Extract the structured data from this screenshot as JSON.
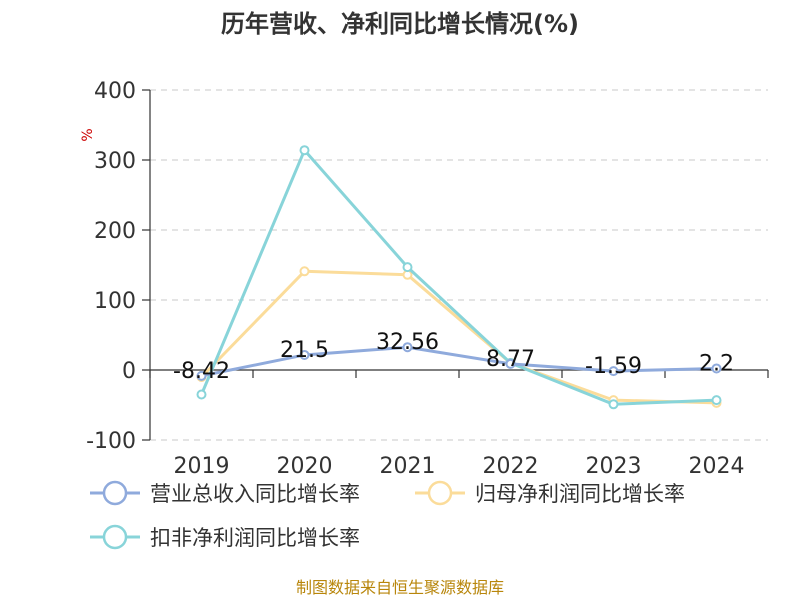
{
  "chart_data": {
    "type": "line",
    "title": "历年营收、净利同比增长情况(%)",
    "ylabel": "%",
    "ylim": [
      -100,
      400
    ],
    "yticks": [
      -100,
      0,
      100,
      200,
      300,
      400
    ],
    "grid": true,
    "categories": [
      "2019",
      "2020",
      "2021",
      "2022",
      "2023",
      "2024"
    ],
    "series": [
      {
        "name": "营业总收入同比增长率",
        "color": "#8faadc",
        "values": [
          -8.42,
          21.5,
          32.56,
          8.77,
          -1.59,
          2.2
        ],
        "labels": [
          "-8.42",
          "21.5",
          "32.56",
          "8.77",
          "-1.59",
          "2.2"
        ]
      },
      {
        "name": "归母净利润同比增长率",
        "color": "#fbdc9a",
        "values": [
          -10,
          141,
          136,
          10,
          -43,
          -47
        ]
      },
      {
        "name": "扣非净利润同比增长率",
        "color": "#88d4d9",
        "values": [
          -35,
          314,
          147,
          10,
          -49,
          -43
        ]
      }
    ],
    "legend_position": "bottom",
    "source": "制图数据来自恒生聚源数据库"
  }
}
